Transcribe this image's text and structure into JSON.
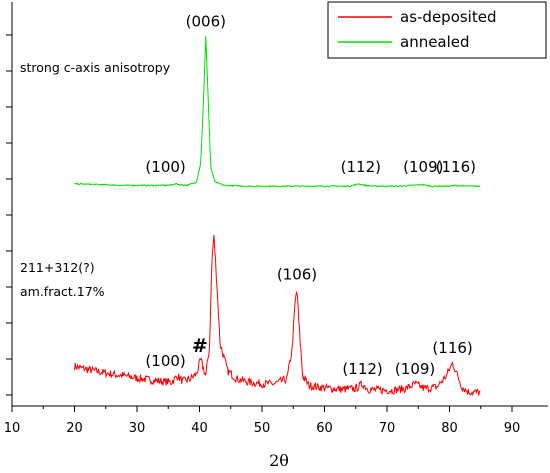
{
  "chart_data": {
    "type": "line",
    "title": "",
    "xlabel": "2θ",
    "ylabel": "",
    "xlim": [
      10,
      90
    ],
    "x_ticks": [
      10,
      20,
      30,
      40,
      50,
      60,
      70,
      80,
      90
    ],
    "grid": false,
    "legend_position": "top-right",
    "series": [
      {
        "name": "as-deposited",
        "color": "#ff0000",
        "x": [
          20,
          22,
          24,
          26,
          28,
          30,
          32,
          34,
          35.5,
          36.5,
          37.3,
          38.5,
          39.5,
          40.2,
          41.0,
          41.6,
          42.0,
          42.3,
          42.7,
          43.3,
          44.5,
          46,
          48,
          50,
          52,
          54,
          54.8,
          55.3,
          55.6,
          55.9,
          56.5,
          57.5,
          59,
          61,
          63,
          65,
          66.1,
          67,
          69,
          71,
          73,
          74.5,
          76,
          78,
          79.5,
          80.5,
          81.2,
          82,
          83,
          85
        ],
        "y": [
          0.18,
          0.16,
          0.145,
          0.13,
          0.12,
          0.105,
          0.095,
          0.085,
          0.08,
          0.12,
          0.085,
          0.1,
          0.13,
          0.22,
          0.12,
          0.3,
          0.85,
          1.0,
          0.75,
          0.32,
          0.15,
          0.1,
          0.08,
          0.07,
          0.07,
          0.1,
          0.28,
          0.58,
          0.66,
          0.45,
          0.12,
          0.06,
          0.05,
          0.04,
          0.035,
          0.04,
          0.07,
          0.035,
          0.03,
          0.03,
          0.04,
          0.07,
          0.04,
          0.05,
          0.12,
          0.2,
          0.13,
          0.05,
          0.02,
          0.015
        ]
      },
      {
        "name": "annealed",
        "color": "#00e000",
        "x": [
          20,
          24,
          28,
          32,
          35,
          36.3,
          36.8,
          38,
          39.5,
          40.2,
          40.7,
          41.0,
          41.3,
          41.8,
          42.5,
          44,
          48,
          52,
          56,
          60,
          64,
          65.5,
          66.5,
          68,
          72,
          75.8,
          77,
          80,
          81,
          83,
          85
        ],
        "y": [
          1.32,
          1.315,
          1.31,
          1.31,
          1.31,
          1.32,
          1.315,
          1.31,
          1.33,
          1.45,
          1.9,
          2.24,
          1.95,
          1.42,
          1.33,
          1.31,
          1.305,
          1.305,
          1.305,
          1.305,
          1.305,
          1.32,
          1.31,
          1.305,
          1.305,
          1.315,
          1.305,
          1.305,
          1.31,
          1.305,
          1.305
        ]
      }
    ],
    "annotations": [
      {
        "text": "(006)",
        "x": 41.0,
        "y": 2.24
      },
      {
        "text": "(100)",
        "x": 36.5,
        "y": 1.33
      },
      {
        "text": "(112)",
        "x": 65.8,
        "y": 1.33
      },
      {
        "text": "(109)",
        "x": 75.8,
        "y": 1.33
      },
      {
        "text": "(116)",
        "x": 81.0,
        "y": 1.33
      },
      {
        "text": "(106)",
        "x": 55.6,
        "y": 0.66
      },
      {
        "text": "(100)",
        "x": 36.5,
        "y": 0.12
      },
      {
        "text": "(112)",
        "x": 66.1,
        "y": 0.07
      },
      {
        "text": "(109)",
        "x": 74.5,
        "y": 0.07
      },
      {
        "text": "(116)",
        "x": 80.5,
        "y": 0.2
      },
      {
        "text": "#",
        "x": 40.2,
        "y": 0.22
      }
    ],
    "notes": {
      "annealed_note": "strong c-axis anisotropy",
      "deposited_note_1": "211+312(?)",
      "deposited_note_2": "am.fract.17%"
    }
  }
}
